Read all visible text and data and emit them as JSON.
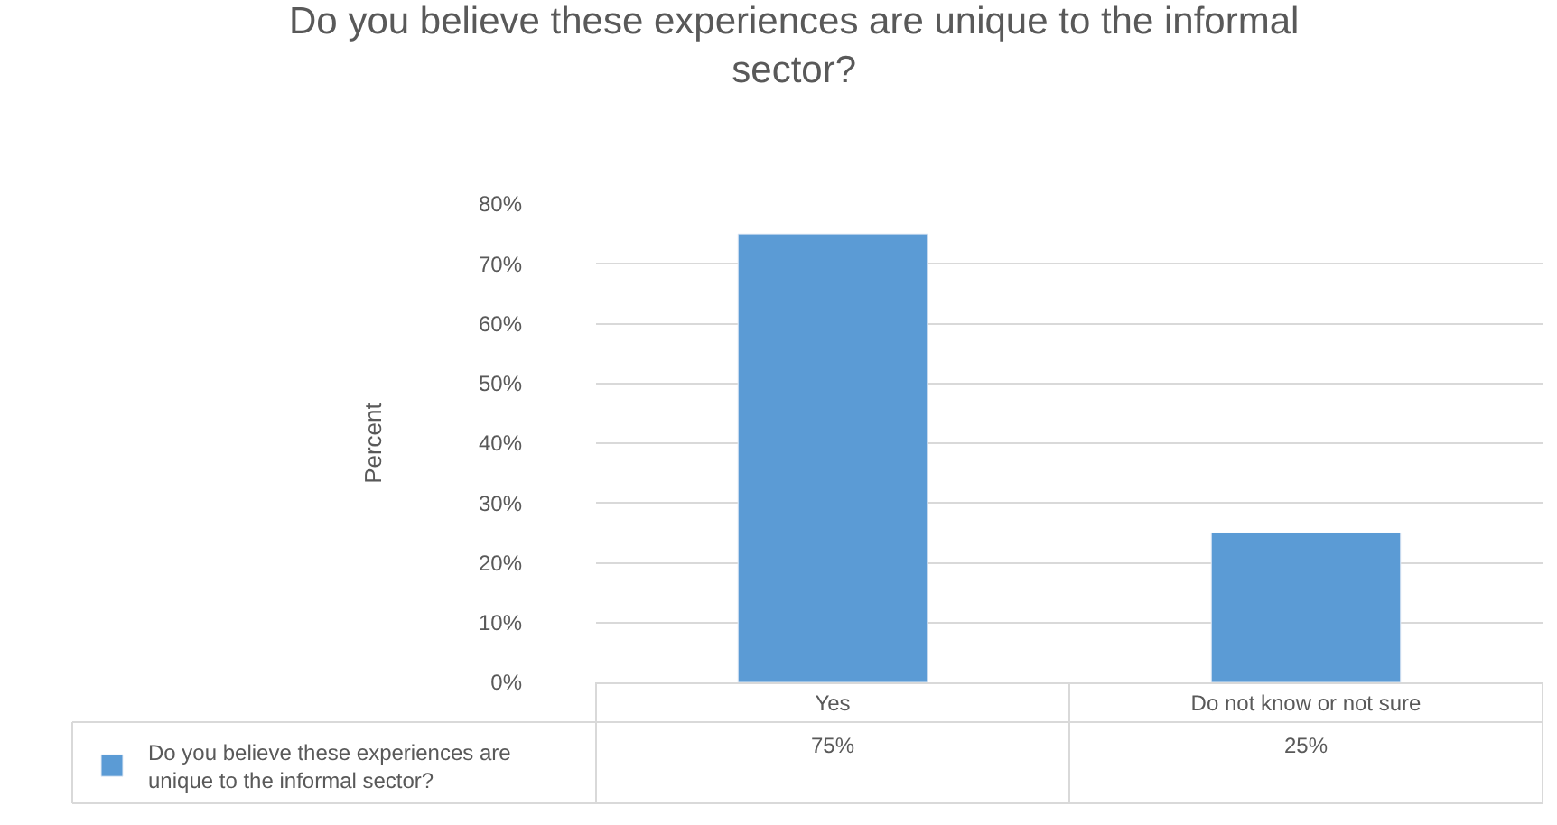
{
  "chart_data": {
    "type": "bar",
    "title": "Do you believe these experiences are unique to the informal sector?",
    "ylabel": "Percent",
    "categories": [
      "Yes",
      "Do not know or not sure"
    ],
    "series": [
      {
        "name": "Do you believe these experiences are unique to the informal sector?",
        "color": "#5b9bd5",
        "values": [
          75,
          25
        ],
        "value_labels": [
          "75%",
          "25%"
        ]
      }
    ],
    "ylim": [
      0,
      80
    ],
    "yticks": [
      {
        "value": 0,
        "label": "0%"
      },
      {
        "value": 10,
        "label": "10%"
      },
      {
        "value": 20,
        "label": "20%"
      },
      {
        "value": 30,
        "label": "30%"
      },
      {
        "value": 40,
        "label": "40%"
      },
      {
        "value": 50,
        "label": "50%"
      },
      {
        "value": 60,
        "label": "60%"
      },
      {
        "value": 70,
        "label": "70%"
      },
      {
        "value": 80,
        "label": "80%"
      }
    ],
    "grid": "y",
    "legend": "bottom left"
  }
}
